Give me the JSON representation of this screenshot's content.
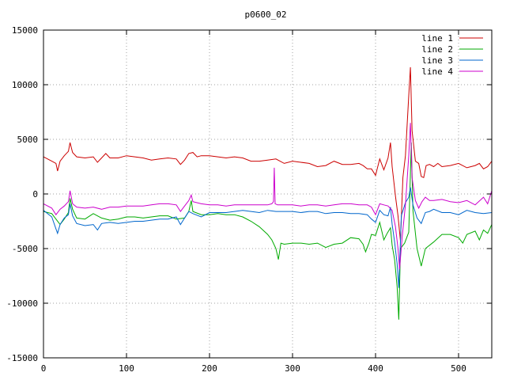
{
  "chart_data": {
    "type": "line",
    "title": "p0600_02",
    "xlabel": "",
    "ylabel": "",
    "xlim": [
      0,
      540
    ],
    "ylim": [
      -15000,
      15000
    ],
    "x_ticks": [
      0,
      100,
      200,
      300,
      400,
      500
    ],
    "y_ticks": [
      -15000,
      -10000,
      -5000,
      0,
      5000,
      10000,
      15000
    ],
    "grid": true,
    "legend_position": "top-right",
    "series": [
      {
        "name": "line 1",
        "color": "#cc0000",
        "points": [
          [
            0,
            3400
          ],
          [
            10,
            3000
          ],
          [
            15,
            2800
          ],
          [
            17,
            2100
          ],
          [
            20,
            3000
          ],
          [
            25,
            3500
          ],
          [
            30,
            3900
          ],
          [
            32,
            4700
          ],
          [
            35,
            3800
          ],
          [
            40,
            3400
          ],
          [
            50,
            3300
          ],
          [
            60,
            3400
          ],
          [
            65,
            2900
          ],
          [
            70,
            3300
          ],
          [
            75,
            3700
          ],
          [
            80,
            3300
          ],
          [
            90,
            3300
          ],
          [
            100,
            3500
          ],
          [
            110,
            3400
          ],
          [
            120,
            3300
          ],
          [
            130,
            3100
          ],
          [
            140,
            3200
          ],
          [
            150,
            3300
          ],
          [
            160,
            3200
          ],
          [
            165,
            2700
          ],
          [
            170,
            3100
          ],
          [
            175,
            3700
          ],
          [
            180,
            3800
          ],
          [
            185,
            3400
          ],
          [
            190,
            3500
          ],
          [
            200,
            3500
          ],
          [
            210,
            3400
          ],
          [
            220,
            3300
          ],
          [
            230,
            3400
          ],
          [
            240,
            3300
          ],
          [
            250,
            3000
          ],
          [
            260,
            3000
          ],
          [
            270,
            3100
          ],
          [
            280,
            3200
          ],
          [
            290,
            2800
          ],
          [
            300,
            3000
          ],
          [
            310,
            2900
          ],
          [
            320,
            2800
          ],
          [
            330,
            2500
          ],
          [
            340,
            2600
          ],
          [
            350,
            3000
          ],
          [
            360,
            2700
          ],
          [
            370,
            2700
          ],
          [
            380,
            2800
          ],
          [
            385,
            2600
          ],
          [
            390,
            2300
          ],
          [
            395,
            2300
          ],
          [
            400,
            1700
          ],
          [
            405,
            3200
          ],
          [
            410,
            2200
          ],
          [
            415,
            3300
          ],
          [
            418,
            4700
          ],
          [
            420,
            2500
          ],
          [
            424,
            -200
          ],
          [
            427,
            -2000
          ],
          [
            430,
            -4300
          ],
          [
            433,
            1500
          ],
          [
            436,
            3500
          ],
          [
            440,
            9000
          ],
          [
            442,
            11600
          ],
          [
            444,
            5800
          ],
          [
            448,
            3000
          ],
          [
            452,
            2800
          ],
          [
            455,
            1600
          ],
          [
            458,
            1500
          ],
          [
            461,
            2600
          ],
          [
            465,
            2700
          ],
          [
            470,
            2500
          ],
          [
            475,
            2800
          ],
          [
            480,
            2500
          ],
          [
            490,
            2600
          ],
          [
            500,
            2800
          ],
          [
            510,
            2400
          ],
          [
            520,
            2600
          ],
          [
            525,
            2800
          ],
          [
            530,
            2300
          ],
          [
            535,
            2500
          ],
          [
            540,
            3000
          ]
        ]
      },
      {
        "name": "line 2",
        "color": "#00aa00",
        "points": [
          [
            0,
            -1600
          ],
          [
            10,
            -1800
          ],
          [
            20,
            -2800
          ],
          [
            25,
            -2300
          ],
          [
            30,
            -1700
          ],
          [
            32,
            -400
          ],
          [
            35,
            -1400
          ],
          [
            40,
            -2200
          ],
          [
            50,
            -2300
          ],
          [
            60,
            -1800
          ],
          [
            70,
            -2200
          ],
          [
            80,
            -2400
          ],
          [
            90,
            -2300
          ],
          [
            100,
            -2100
          ],
          [
            110,
            -2100
          ],
          [
            120,
            -2200
          ],
          [
            130,
            -2100
          ],
          [
            140,
            -2000
          ],
          [
            150,
            -2000
          ],
          [
            160,
            -2300
          ],
          [
            170,
            -2200
          ],
          [
            175,
            -1600
          ],
          [
            178,
            -600
          ],
          [
            180,
            -1600
          ],
          [
            190,
            -1900
          ],
          [
            200,
            -1900
          ],
          [
            210,
            -1800
          ],
          [
            220,
            -1900
          ],
          [
            230,
            -1900
          ],
          [
            240,
            -2100
          ],
          [
            250,
            -2500
          ],
          [
            260,
            -3000
          ],
          [
            270,
            -3700
          ],
          [
            275,
            -4200
          ],
          [
            280,
            -5000
          ],
          [
            283,
            -6000
          ],
          [
            286,
            -4500
          ],
          [
            290,
            -4600
          ],
          [
            300,
            -4500
          ],
          [
            310,
            -4500
          ],
          [
            320,
            -4600
          ],
          [
            330,
            -4500
          ],
          [
            340,
            -4900
          ],
          [
            350,
            -4600
          ],
          [
            360,
            -4500
          ],
          [
            370,
            -4000
          ],
          [
            380,
            -4100
          ],
          [
            385,
            -4600
          ],
          [
            388,
            -5300
          ],
          [
            392,
            -4500
          ],
          [
            395,
            -3700
          ],
          [
            400,
            -3800
          ],
          [
            405,
            -2600
          ],
          [
            410,
            -4200
          ],
          [
            414,
            -3600
          ],
          [
            418,
            -3100
          ],
          [
            420,
            -4700
          ],
          [
            423,
            -6000
          ],
          [
            426,
            -8500
          ],
          [
            428,
            -11500
          ],
          [
            430,
            -5000
          ],
          [
            435,
            -4500
          ],
          [
            440,
            -3500
          ],
          [
            443,
            4700
          ],
          [
            445,
            -1500
          ],
          [
            450,
            -5000
          ],
          [
            455,
            -6600
          ],
          [
            460,
            -5000
          ],
          [
            470,
            -4400
          ],
          [
            480,
            -3700
          ],
          [
            490,
            -3700
          ],
          [
            500,
            -4000
          ],
          [
            505,
            -4500
          ],
          [
            510,
            -3700
          ],
          [
            520,
            -3400
          ],
          [
            525,
            -4200
          ],
          [
            530,
            -3300
          ],
          [
            535,
            -3600
          ],
          [
            540,
            -2800
          ]
        ]
      },
      {
        "name": "line 3",
        "color": "#0066cc",
        "points": [
          [
            0,
            -1500
          ],
          [
            10,
            -2100
          ],
          [
            15,
            -3200
          ],
          [
            17,
            -3600
          ],
          [
            20,
            -2800
          ],
          [
            25,
            -2200
          ],
          [
            30,
            -1900
          ],
          [
            32,
            -900
          ],
          [
            35,
            -2000
          ],
          [
            40,
            -2700
          ],
          [
            50,
            -2900
          ],
          [
            60,
            -2800
          ],
          [
            65,
            -3300
          ],
          [
            70,
            -2700
          ],
          [
            80,
            -2600
          ],
          [
            90,
            -2700
          ],
          [
            100,
            -2600
          ],
          [
            110,
            -2500
          ],
          [
            120,
            -2500
          ],
          [
            130,
            -2400
          ],
          [
            140,
            -2300
          ],
          [
            150,
            -2300
          ],
          [
            160,
            -2100
          ],
          [
            165,
            -2800
          ],
          [
            170,
            -2200
          ],
          [
            175,
            -1600
          ],
          [
            180,
            -1800
          ],
          [
            190,
            -2100
          ],
          [
            200,
            -1700
          ],
          [
            210,
            -1700
          ],
          [
            220,
            -1700
          ],
          [
            230,
            -1600
          ],
          [
            240,
            -1500
          ],
          [
            250,
            -1600
          ],
          [
            260,
            -1700
          ],
          [
            270,
            -1500
          ],
          [
            280,
            -1600
          ],
          [
            290,
            -1600
          ],
          [
            300,
            -1600
          ],
          [
            310,
            -1700
          ],
          [
            320,
            -1600
          ],
          [
            330,
            -1600
          ],
          [
            340,
            -1800
          ],
          [
            350,
            -1700
          ],
          [
            360,
            -1700
          ],
          [
            370,
            -1800
          ],
          [
            380,
            -1800
          ],
          [
            390,
            -1900
          ],
          [
            395,
            -2300
          ],
          [
            400,
            -2600
          ],
          [
            405,
            -1500
          ],
          [
            410,
            -1900
          ],
          [
            415,
            -2000
          ],
          [
            418,
            -1200
          ],
          [
            420,
            -2800
          ],
          [
            423,
            -4400
          ],
          [
            426,
            -6400
          ],
          [
            428,
            -8600
          ],
          [
            431,
            -2000
          ],
          [
            436,
            -800
          ],
          [
            440,
            -300
          ],
          [
            442,
            600
          ],
          [
            445,
            -1000
          ],
          [
            450,
            -2200
          ],
          [
            455,
            -2700
          ],
          [
            460,
            -1700
          ],
          [
            465,
            -1600
          ],
          [
            470,
            -1400
          ],
          [
            480,
            -1700
          ],
          [
            490,
            -1700
          ],
          [
            500,
            -1900
          ],
          [
            510,
            -1500
          ],
          [
            520,
            -1700
          ],
          [
            530,
            -1800
          ],
          [
            540,
            -1700
          ]
        ]
      },
      {
        "name": "line 4",
        "color": "#cc00cc",
        "points": [
          [
            0,
            -900
          ],
          [
            10,
            -1300
          ],
          [
            15,
            -1900
          ],
          [
            20,
            -1400
          ],
          [
            25,
            -1100
          ],
          [
            30,
            -700
          ],
          [
            32,
            300
          ],
          [
            35,
            -900
          ],
          [
            40,
            -1200
          ],
          [
            50,
            -1300
          ],
          [
            60,
            -1200
          ],
          [
            70,
            -1400
          ],
          [
            80,
            -1200
          ],
          [
            90,
            -1200
          ],
          [
            100,
            -1100
          ],
          [
            110,
            -1100
          ],
          [
            120,
            -1100
          ],
          [
            130,
            -1000
          ],
          [
            140,
            -900
          ],
          [
            150,
            -900
          ],
          [
            160,
            -1000
          ],
          [
            165,
            -1600
          ],
          [
            170,
            -1100
          ],
          [
            175,
            -600
          ],
          [
            178,
            -100
          ],
          [
            180,
            -700
          ],
          [
            190,
            -900
          ],
          [
            200,
            -1000
          ],
          [
            210,
            -1000
          ],
          [
            220,
            -1100
          ],
          [
            230,
            -1000
          ],
          [
            240,
            -1000
          ],
          [
            250,
            -1000
          ],
          [
            260,
            -1000
          ],
          [
            270,
            -1000
          ],
          [
            275,
            -900
          ],
          [
            277,
            -700
          ],
          [
            278,
            2400
          ],
          [
            279,
            -900
          ],
          [
            282,
            -1000
          ],
          [
            290,
            -1000
          ],
          [
            300,
            -1000
          ],
          [
            310,
            -1100
          ],
          [
            320,
            -1000
          ],
          [
            330,
            -1000
          ],
          [
            340,
            -1100
          ],
          [
            350,
            -1000
          ],
          [
            360,
            -900
          ],
          [
            370,
            -900
          ],
          [
            380,
            -1000
          ],
          [
            390,
            -1000
          ],
          [
            395,
            -1200
          ],
          [
            400,
            -1900
          ],
          [
            405,
            -900
          ],
          [
            410,
            -1000
          ],
          [
            415,
            -1100
          ],
          [
            420,
            -1500
          ],
          [
            424,
            -3000
          ],
          [
            427,
            -5000
          ],
          [
            429,
            -6900
          ],
          [
            432,
            -4000
          ],
          [
            436,
            -1000
          ],
          [
            440,
            3500
          ],
          [
            442,
            6500
          ],
          [
            444,
            1500
          ],
          [
            448,
            -600
          ],
          [
            452,
            -1300
          ],
          [
            456,
            -700
          ],
          [
            460,
            -300
          ],
          [
            465,
            -600
          ],
          [
            470,
            -600
          ],
          [
            480,
            -500
          ],
          [
            490,
            -700
          ],
          [
            500,
            -800
          ],
          [
            510,
            -600
          ],
          [
            520,
            -1000
          ],
          [
            530,
            -300
          ],
          [
            535,
            -900
          ],
          [
            540,
            300
          ]
        ]
      }
    ]
  }
}
